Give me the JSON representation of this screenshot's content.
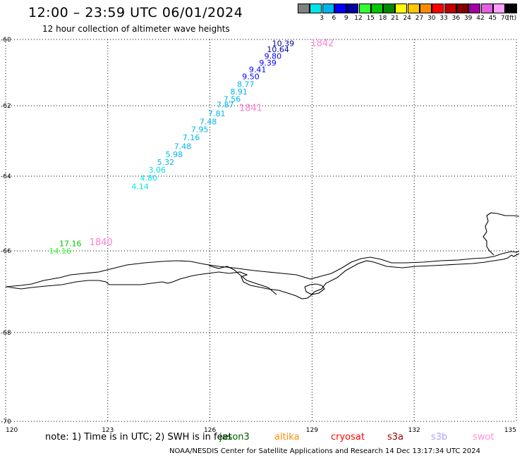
{
  "header": {
    "title": "12:00 – 23:59 UTC 06/01/2024",
    "subtitle": "12 hour collection of altimeter wave heights"
  },
  "colorbar": {
    "unit_label": "(ft)",
    "entries": [
      {
        "label": "",
        "color": "#808080"
      },
      {
        "label": "3",
        "color": "#00e5e5"
      },
      {
        "label": "6",
        "color": "#00b4f0"
      },
      {
        "label": "9",
        "color": "#0000ff"
      },
      {
        "label": "12",
        "color": "#0000a0"
      },
      {
        "label": "15",
        "color": "#33ff33"
      },
      {
        "label": "18",
        "color": "#00c800"
      },
      {
        "label": "21",
        "color": "#008800"
      },
      {
        "label": "24",
        "color": "#ffff00"
      },
      {
        "label": "27",
        "color": "#ffc800"
      },
      {
        "label": "30",
        "color": "#ff8c00"
      },
      {
        "label": "33",
        "color": "#ff0000"
      },
      {
        "label": "36",
        "color": "#c00000"
      },
      {
        "label": "39",
        "color": "#800000"
      },
      {
        "label": "42",
        "color": "#a000a0"
      },
      {
        "label": "45",
        "color": "#e060e0"
      },
      {
        "label": "70",
        "color": "#ffa0ff"
      },
      {
        "label": "",
        "color": "#000000"
      }
    ]
  },
  "map": {
    "lon_range": [
      120,
      135
    ],
    "lat_range": [
      -70,
      -60
    ],
    "lon_ticks": [
      "120",
      "123",
      "126",
      "129",
      "132",
      "135"
    ],
    "lat_ticks": [
      "-60",
      "-62",
      "-64",
      "-66",
      "-68",
      "-70"
    ],
    "grid": "dotted"
  },
  "observations": [
    {
      "label": "10.39",
      "lon": 128.15,
      "lat": -60.12,
      "color": "#0000a0"
    },
    {
      "label": "10.64",
      "lon": 128.0,
      "lat": -60.3,
      "color": "#0000a0"
    },
    {
      "label": "9.80",
      "lon": 127.85,
      "lat": -60.5,
      "color": "#0000ff"
    },
    {
      "label": "9.39",
      "lon": 127.7,
      "lat": -60.7,
      "color": "#0000ff"
    },
    {
      "label": "9.41",
      "lon": 127.4,
      "lat": -60.9,
      "color": "#0000ff"
    },
    {
      "label": "9.50",
      "lon": 127.2,
      "lat": -61.12,
      "color": "#0000ff"
    },
    {
      "label": "8.77",
      "lon": 127.05,
      "lat": -61.35,
      "color": "#00b4f0"
    },
    {
      "label": "8.91",
      "lon": 126.85,
      "lat": -61.57,
      "color": "#00b4f0"
    },
    {
      "label": "7.56",
      "lon": 126.65,
      "lat": -61.8,
      "color": "#00b4f0"
    },
    {
      "label": "7.87",
      "lon": 126.45,
      "lat": -61.97,
      "color": "#00b4f0"
    },
    {
      "label": "7.81",
      "lon": 126.2,
      "lat": -62.22,
      "color": "#00b4f0"
    },
    {
      "label": "7.48",
      "lon": 125.95,
      "lat": -62.45,
      "color": "#00b4f0"
    },
    {
      "label": "7.95",
      "lon": 125.7,
      "lat": -62.67,
      "color": "#00b4f0"
    },
    {
      "label": "7.16",
      "lon": 125.45,
      "lat": -62.9,
      "color": "#00b4f0"
    },
    {
      "label": "7.48",
      "lon": 125.2,
      "lat": -63.15,
      "color": "#00b4f0"
    },
    {
      "label": "5.98",
      "lon": 124.95,
      "lat": -63.38,
      "color": "#00b4f0"
    },
    {
      "label": "5.32",
      "lon": 124.7,
      "lat": -63.6,
      "color": "#00b4f0"
    },
    {
      "label": "3.06",
      "lon": 124.45,
      "lat": -63.82,
      "color": "#00e5e5"
    },
    {
      "label": "4.80",
      "lon": 124.2,
      "lat": -64.05,
      "color": "#00e5e5"
    },
    {
      "label": "4.14",
      "lon": 123.95,
      "lat": -64.27,
      "color": "#00e5e5"
    },
    {
      "label": "17.16",
      "lon": 121.9,
      "lat": -65.8,
      "color": "#00c800"
    },
    {
      "label": "14.16",
      "lon": 121.6,
      "lat": -66.0,
      "color": "#33ff33"
    }
  ],
  "track_ids": [
    {
      "label": "1842",
      "lon": 129.3,
      "lat": -60.1,
      "color": "#ff80d0"
    },
    {
      "label": "1841",
      "lon": 127.2,
      "lat": -62.05,
      "color": "#ff80d0"
    },
    {
      "label": "1840",
      "lon": 122.8,
      "lat": -65.75,
      "color": "#ff80d0"
    }
  ],
  "footer": {
    "note": "note:  1) Time is in UTC;  2) SWH is in feet",
    "satellites": [
      {
        "name": "jason3",
        "color": "#006400"
      },
      {
        "name": "altika",
        "color": "#ff8c00"
      },
      {
        "name": "cryosat",
        "color": "#ff0000"
      },
      {
        "name": "s3a",
        "color": "#a00000"
      },
      {
        "name": "s3b",
        "color": "#b0a0ff"
      },
      {
        "name": "swot",
        "color": "#ff90e0"
      }
    ],
    "credit": "NOAA/NESDIS Center for Satellite Applications and Research     14 Dec 13:17:34 UTC 2024"
  }
}
